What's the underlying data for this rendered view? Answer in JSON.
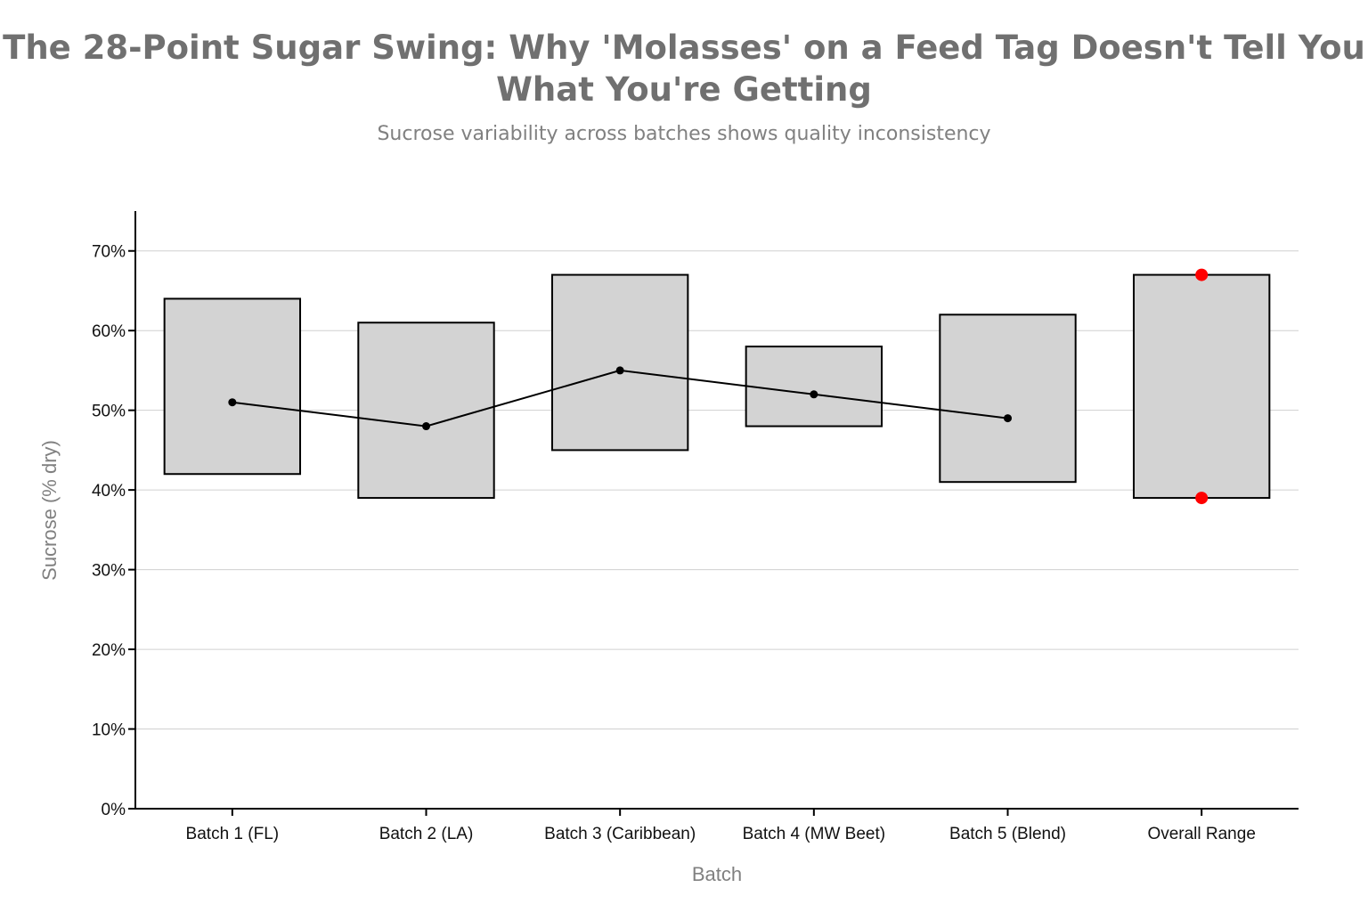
{
  "chart_data": {
    "type": "bar",
    "title": "The 28-Point Sugar Swing: Why 'Molasses' on a Feed Tag Doesn't Tell You What You're Getting",
    "subtitle": "Sucrose variability across batches shows quality inconsistency",
    "xlabel": "Batch",
    "ylabel": "Sucrose (% dry)",
    "ylim": [
      0,
      75
    ],
    "yticks": [
      0,
      10,
      20,
      30,
      40,
      50,
      60,
      70
    ],
    "ytick_format": "%",
    "grid": "horizontal",
    "categories": [
      "Batch 1 (FL)",
      "Batch 2 (LA)",
      "Batch 3 (Caribbean)",
      "Batch 4 (MW Beet)",
      "Batch 5 (Blend)",
      "Overall Range"
    ],
    "ranges": [
      {
        "min": 42,
        "max": 64
      },
      {
        "min": 39,
        "max": 61
      },
      {
        "min": 45,
        "max": 67
      },
      {
        "min": 48,
        "max": 58
      },
      {
        "min": 41,
        "max": 62
      },
      {
        "min": 39,
        "max": 67
      }
    ],
    "means": [
      51,
      48,
      55,
      52,
      49,
      null
    ],
    "overall_extremes": [
      39,
      67
    ],
    "colors": {
      "box_fill": "#d3d3d3",
      "box_stroke": "#000000",
      "line": "#000000",
      "extreme_points": "#ff0000",
      "grid": "#d0d0d0"
    }
  }
}
